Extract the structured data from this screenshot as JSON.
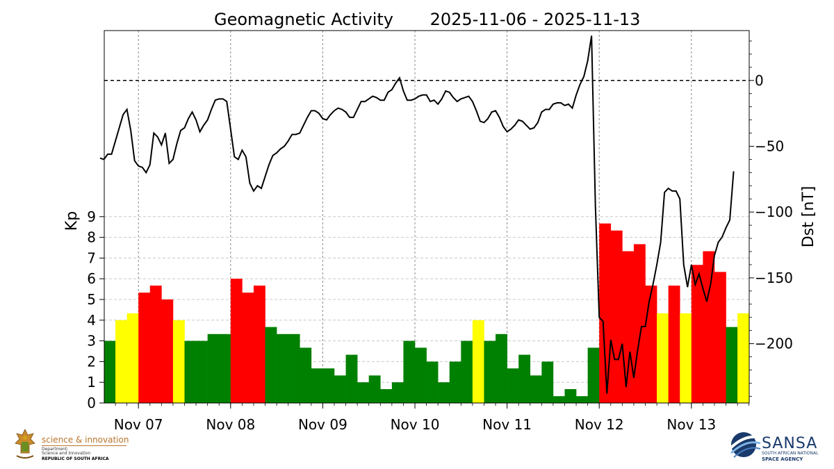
{
  "chart_data": {
    "title_left": "Geomagnetic Activity",
    "title_right": "2025-11-06 - 2025-11-13",
    "x_ticks": [
      "Nov 07",
      "Nov 08",
      "Nov 09",
      "Nov 10",
      "Nov 11",
      "Nov 12",
      "Nov 13"
    ],
    "kp": {
      "type": "bar",
      "ylabel": "Kp",
      "y_ticks": [
        0,
        1,
        2,
        3,
        4,
        5,
        6,
        7,
        8,
        9
      ],
      "ylim": [
        0,
        9
      ],
      "interval_hours": 3,
      "start": "2025-11-06 15:00",
      "values": [
        3.0,
        4.0,
        4.33,
        5.33,
        5.67,
        5.0,
        4.0,
        3.0,
        3.0,
        3.33,
        3.33,
        6.0,
        5.33,
        5.67,
        3.67,
        3.33,
        3.33,
        2.67,
        1.67,
        1.67,
        1.33,
        2.33,
        1.0,
        1.33,
        0.67,
        1.0,
        3.0,
        2.67,
        2.0,
        1.0,
        2.0,
        3.0,
        4.0,
        3.0,
        3.33,
        1.67,
        2.33,
        1.33,
        2.0,
        0.33,
        0.67,
        0.33,
        2.67,
        8.67,
        8.33,
        7.33,
        7.67,
        5.67,
        4.33,
        5.67,
        4.33,
        6.67,
        7.33,
        6.33,
        3.67,
        4.33
      ],
      "color_scale": {
        "green": "#008000",
        "yellow": "#ffff00",
        "red": "#ff0000"
      },
      "color_rule": "green Kp < 4, yellow 4 <= Kp < 5 (and yellow on the last bar), red Kp >= 5"
    },
    "dst": {
      "type": "line",
      "ylabel": "Dst [nT]",
      "y_ticks": [
        0,
        -50,
        -100,
        -150,
        -200
      ],
      "ylim": [
        -250,
        35
      ],
      "x_start": "2025-11-06 14:00",
      "interval_hours": 1,
      "reference_line": 0,
      "values": [
        -59,
        -60,
        -56,
        -56,
        -46,
        -36,
        -26,
        -22,
        -38,
        -61,
        -65,
        -66,
        -70,
        -64,
        -40,
        -43,
        -49,
        -40,
        -63,
        -60,
        -48,
        -38,
        -36,
        -29,
        -24,
        -30,
        -39,
        -34,
        -30,
        -22,
        -15,
        -14,
        -14,
        -16,
        -37,
        -58,
        -60,
        -53,
        -58,
        -78,
        -84,
        -80,
        -82,
        -73,
        -64,
        -57,
        -55,
        -52,
        -50,
        -46,
        -41,
        -41,
        -40,
        -34,
        -28,
        -23,
        -23,
        -25,
        -29,
        -30,
        -26,
        -23,
        -21,
        -22,
        -24,
        -28,
        -28,
        -22,
        -16,
        -16,
        -14,
        -12,
        -13,
        -15,
        -15,
        -9,
        -7,
        -2,
        2,
        -8,
        -15,
        -15,
        -14,
        -12,
        -11,
        -11,
        -16,
        -15,
        -18,
        -14,
        -8,
        -9,
        -13,
        -16,
        -14,
        -13,
        -12,
        -16,
        -23,
        -31,
        -32,
        -29,
        -24,
        -23,
        -28,
        -35,
        -39,
        -37,
        -34,
        -30,
        -31,
        -34,
        -37,
        -36,
        -32,
        -24,
        -22,
        -22,
        -18,
        -17,
        -17,
        -19,
        -18,
        -21,
        -11,
        -3,
        3,
        15,
        34,
        -95,
        -180,
        -183,
        -238,
        -197,
        -212,
        -212,
        -200,
        -233,
        -206,
        -226,
        -205,
        -187,
        -187,
        -168,
        -155,
        -140,
        -123,
        -85,
        -82,
        -84,
        -84,
        -90,
        -140,
        -157,
        -140,
        -155,
        -147,
        -158,
        -168,
        -155,
        -133,
        -123,
        -119,
        -112,
        -106,
        -69
      ]
    }
  },
  "logos": {
    "left_line1": "science & innovation",
    "left_line2a": "Department:",
    "left_line2b": "Science and Innovation",
    "left_line3": "REPUBLIC OF SOUTH AFRICA",
    "right_name": "SANSA",
    "right_sub1": "SOUTH AFRICAN NATIONAL",
    "right_sub2": "SPACE AGENCY"
  }
}
